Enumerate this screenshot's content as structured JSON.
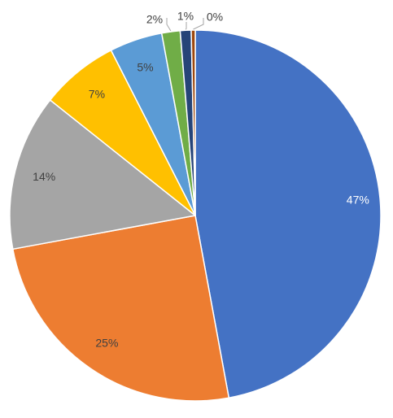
{
  "chart_data": {
    "type": "pie",
    "title": "",
    "start_angle_deg": 0,
    "direction": "clockwise",
    "slice_border_color": "#ffffff",
    "slices": [
      {
        "label": "47%",
        "value": 47.1,
        "color": "#4472C4",
        "label_color": "#ffffff",
        "label_position": "inside"
      },
      {
        "label": "25%",
        "value": 25.0,
        "color": "#ED7D31",
        "label_color": "#404040",
        "label_position": "inside"
      },
      {
        "label": "14%",
        "value": 13.6,
        "color": "#A5A5A5",
        "label_color": "#404040",
        "label_position": "inside"
      },
      {
        "label": "7%",
        "value": 6.8,
        "color": "#FFC000",
        "label_color": "#404040",
        "label_position": "inside"
      },
      {
        "label": "5%",
        "value": 4.6,
        "color": "#5B9BD5",
        "label_color": "#404040",
        "label_position": "inside"
      },
      {
        "label": "2%",
        "value": 1.6,
        "color": "#70AD47",
        "label_color": "#404040",
        "label_position": "outside"
      },
      {
        "label": "1%",
        "value": 0.95,
        "color": "#264478",
        "label_color": "#404040",
        "label_position": "outside"
      },
      {
        "label": "0%",
        "value": 0.35,
        "color": "#9E480E",
        "label_color": "#404040",
        "label_position": "outside"
      }
    ]
  }
}
